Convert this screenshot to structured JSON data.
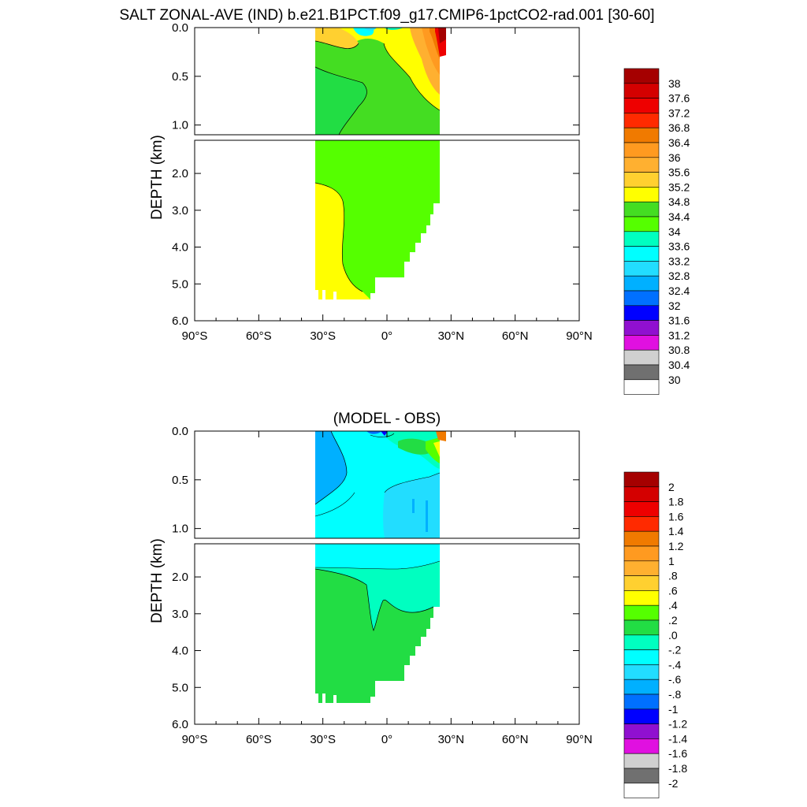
{
  "chart_data": [
    {
      "type": "contour",
      "title": "SALT ZONAL-AVE (IND) b.e21.B1PCT.f09_g17.CMIP6-1pctCO2-rad.001 [30-60]",
      "ylabel": "DEPTH (km)",
      "x_range": [
        -90,
        90
      ],
      "x_ticks": [
        "90°S",
        "60°S",
        "30°S",
        "0°",
        "30°N",
        "60°N",
        "90°N"
      ],
      "y_upper_range_km": [
        0,
        1.1
      ],
      "y_upper_ticks": [
        "0.0",
        "0.5",
        "1.0"
      ],
      "y_lower_range_km": [
        1.1,
        6.0
      ],
      "y_lower_ticks": [
        "2.0",
        "3.0",
        "4.0",
        "5.0",
        "6.0"
      ],
      "data_extent_lat": [
        -34,
        25
      ],
      "colorbar": {
        "labels": [
          "38",
          "37.6",
          "37.2",
          "36.8",
          "36.4",
          "36",
          "35.6",
          "35.2",
          "34.8",
          "34.4",
          "34",
          "33.6",
          "33.2",
          "32.8",
          "32.4",
          "32",
          "31.6",
          "31.2",
          "30.8",
          "30.4",
          "30"
        ],
        "colors": [
          "#a50000",
          "#d40000",
          "#ee0000",
          "#ff2a00",
          "#f07a00",
          "#ff9a20",
          "#ffb030",
          "#ffd030",
          "#ffff00",
          "#44dd22",
          "#55ff00",
          "#00ffc0",
          "#00ffff",
          "#22ddff",
          "#00b0ff",
          "#0070ff",
          "#0000ff",
          "#9010d0",
          "#e010e0",
          "#d0d0d0",
          "#707070",
          "#ffffff"
        ]
      },
      "regions": [
        {
          "label": "surface salty northern band",
          "value_range": [
            34.8,
            38
          ]
        },
        {
          "label": "upper ocean 0.1-1 km",
          "value_range": [
            34.4,
            34.8
          ]
        },
        {
          "label": "deep south 2.3-5.3 km",
          "value_range": [
            34.8,
            35.2
          ]
        },
        {
          "label": "deep north",
          "value_range": [
            34.4,
            34.8
          ]
        }
      ]
    },
    {
      "type": "contour",
      "title": "(MODEL - OBS)",
      "ylabel": "DEPTH (km)",
      "x_range": [
        -90,
        90
      ],
      "x_ticks": [
        "90°S",
        "60°S",
        "30°S",
        "0°",
        "30°N",
        "60°N",
        "90°N"
      ],
      "y_upper_range_km": [
        0,
        1.1
      ],
      "y_upper_ticks": [
        "0.0",
        "0.5",
        "1.0"
      ],
      "y_lower_range_km": [
        1.1,
        6.0
      ],
      "y_lower_ticks": [
        "2.0",
        "3.0",
        "4.0",
        "5.0",
        "6.0"
      ],
      "data_extent_lat": [
        -34,
        25
      ],
      "colorbar": {
        "labels": [
          "2",
          "1.8",
          "1.6",
          "1.4",
          "1.2",
          "1",
          ".8",
          ".6",
          ".4",
          ".2",
          ".0",
          "-.2",
          "-.4",
          "-.6",
          "-.8",
          "-1",
          "-1.2",
          "-1.4",
          "-1.6",
          "-1.8",
          "-2"
        ],
        "colors": [
          "#a50000",
          "#d40000",
          "#ee0000",
          "#ff2a00",
          "#f07a00",
          "#ff9a20",
          "#ffb030",
          "#ffd030",
          "#ffff00",
          "#55ff00",
          "#22dd44",
          "#00ffc0",
          "#00ffff",
          "#22ddff",
          "#00b0ff",
          "#0070ff",
          "#0000ff",
          "#9010d0",
          "#e010e0",
          "#d0d0d0",
          "#707070",
          "#ffffff"
        ]
      },
      "regions": [
        {
          "label": "upper ocean",
          "value_range": [
            -0.4,
            -0.2
          ]
        },
        {
          "label": "southern upper edge",
          "value_range": [
            -0.6,
            -0.4
          ]
        },
        {
          "label": "1.1-2.5 km",
          "value_range": [
            -0.2,
            0.0
          ]
        },
        {
          "label": "deep ocean",
          "value_range": [
            0.0,
            0.2
          ]
        }
      ]
    }
  ]
}
